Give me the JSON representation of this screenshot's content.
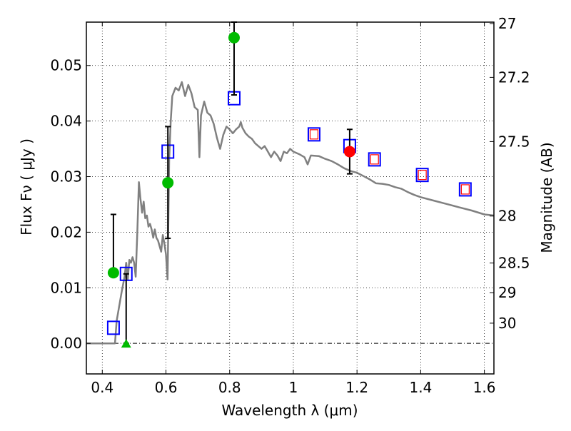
{
  "chart_data": {
    "type": "scatter",
    "title": "",
    "xlabel": "Wavelength  λ (μm)",
    "ylabel": "Flux  Fν  ( μJy )",
    "y2label": "Magnitude (AB)",
    "xlim": [
      0.35,
      1.63
    ],
    "ylim": [
      -0.0055,
      0.0578
    ],
    "grid": true,
    "legend": "none",
    "xticks": [
      0.4,
      0.6,
      0.8,
      1.0,
      1.2,
      1.4,
      1.6
    ],
    "xtick_labels": [
      "0.4",
      "0.6",
      "0.8",
      "1",
      "1.2",
      "1.4",
      "1.6"
    ],
    "yticks": [
      0.0,
      0.01,
      0.02,
      0.03,
      0.04,
      0.05
    ],
    "ytick_labels": [
      "0.00",
      "0.01",
      "0.02",
      "0.03",
      "0.04",
      "0.05"
    ],
    "y2ticks": [
      27,
      27.2,
      27.5,
      28,
      28.5,
      29,
      30
    ],
    "y2tick_labels": [
      "27",
      "27.2",
      "27.5",
      "28",
      "28.5",
      "29",
      "30"
    ],
    "y2_zero_point_ab": 23.9,
    "colors": {
      "model": "#808080",
      "observed": "#00bb00",
      "observed_red": "#ff0000",
      "model_phot": "#0000ff",
      "model_phot_inner": "#ff0000",
      "errorbar": "#000000"
    },
    "series": [
      {
        "name": "model-spectrum",
        "type": "line",
        "points": [
          [
            0.35,
            0.0
          ],
          [
            0.44,
            0.0
          ],
          [
            0.445,
            0.004
          ],
          [
            0.46,
            0.009
          ],
          [
            0.47,
            0.012
          ],
          [
            0.475,
            0.0145
          ],
          [
            0.48,
            0.0115
          ],
          [
            0.485,
            0.015
          ],
          [
            0.49,
            0.0145
          ],
          [
            0.495,
            0.0155
          ],
          [
            0.5,
            0.0145
          ],
          [
            0.505,
            0.012
          ],
          [
            0.51,
            0.02
          ],
          [
            0.515,
            0.029
          ],
          [
            0.52,
            0.026
          ],
          [
            0.525,
            0.0235
          ],
          [
            0.53,
            0.0255
          ],
          [
            0.535,
            0.0225
          ],
          [
            0.54,
            0.023
          ],
          [
            0.545,
            0.021
          ],
          [
            0.55,
            0.0215
          ],
          [
            0.555,
            0.0205
          ],
          [
            0.56,
            0.019
          ],
          [
            0.565,
            0.0205
          ],
          [
            0.57,
            0.019
          ],
          [
            0.575,
            0.0185
          ],
          [
            0.58,
            0.0175
          ],
          [
            0.585,
            0.0165
          ],
          [
            0.59,
            0.0195
          ],
          [
            0.595,
            0.018
          ],
          [
            0.6,
            0.016
          ],
          [
            0.605,
            0.0115
          ],
          [
            0.61,
            0.033
          ],
          [
            0.615,
            0.04
          ],
          [
            0.62,
            0.0445
          ],
          [
            0.63,
            0.046
          ],
          [
            0.64,
            0.0455
          ],
          [
            0.65,
            0.047
          ],
          [
            0.66,
            0.0445
          ],
          [
            0.67,
            0.0465
          ],
          [
            0.68,
            0.045
          ],
          [
            0.69,
            0.0425
          ],
          [
            0.7,
            0.042
          ],
          [
            0.705,
            0.0335
          ],
          [
            0.71,
            0.041
          ],
          [
            0.72,
            0.0435
          ],
          [
            0.73,
            0.0415
          ],
          [
            0.74,
            0.041
          ],
          [
            0.75,
            0.0395
          ],
          [
            0.76,
            0.037
          ],
          [
            0.77,
            0.035
          ],
          [
            0.78,
            0.0375
          ],
          [
            0.79,
            0.039
          ],
          [
            0.8,
            0.0385
          ],
          [
            0.81,
            0.0378
          ],
          [
            0.82,
            0.0385
          ],
          [
            0.83,
            0.039
          ],
          [
            0.835,
            0.0398
          ],
          [
            0.84,
            0.0388
          ],
          [
            0.85,
            0.0378
          ],
          [
            0.86,
            0.0372
          ],
          [
            0.87,
            0.0368
          ],
          [
            0.88,
            0.036
          ],
          [
            0.89,
            0.0355
          ],
          [
            0.9,
            0.035
          ],
          [
            0.91,
            0.0355
          ],
          [
            0.92,
            0.0345
          ],
          [
            0.93,
            0.0335
          ],
          [
            0.94,
            0.0345
          ],
          [
            0.95,
            0.0338
          ],
          [
            0.96,
            0.0328
          ],
          [
            0.97,
            0.0345
          ],
          [
            0.98,
            0.0342
          ],
          [
            0.99,
            0.035
          ],
          [
            1.0,
            0.0345
          ],
          [
            1.02,
            0.034
          ],
          [
            1.035,
            0.0335
          ],
          [
            1.045,
            0.0322
          ],
          [
            1.055,
            0.0338
          ],
          [
            1.08,
            0.0337
          ],
          [
            1.1,
            0.0332
          ],
          [
            1.12,
            0.0328
          ],
          [
            1.14,
            0.0322
          ],
          [
            1.16,
            0.0315
          ],
          [
            1.18,
            0.031
          ],
          [
            1.2,
            0.0307
          ],
          [
            1.22,
            0.0301
          ],
          [
            1.24,
            0.0295
          ],
          [
            1.26,
            0.0288
          ],
          [
            1.28,
            0.0287
          ],
          [
            1.3,
            0.0285
          ],
          [
            1.32,
            0.0281
          ],
          [
            1.34,
            0.0278
          ],
          [
            1.36,
            0.0272
          ],
          [
            1.38,
            0.0267
          ],
          [
            1.4,
            0.0263
          ],
          [
            1.44,
            0.0257
          ],
          [
            1.48,
            0.0251
          ],
          [
            1.52,
            0.0245
          ],
          [
            1.56,
            0.0239
          ],
          [
            1.6,
            0.0232
          ],
          [
            1.63,
            0.023
          ]
        ]
      },
      {
        "name": "observed-flux",
        "type": "errorbar-circle",
        "color": "#00bb00",
        "points": [
          {
            "x": 0.435,
            "y": 0.0127,
            "yerr_low": 0.0127,
            "yerr_high": 0.0232
          },
          {
            "x": 0.606,
            "y": 0.0289,
            "yerr_low": 0.0189,
            "yerr_high": 0.039
          },
          {
            "x": 0.814,
            "y": 0.055,
            "yerr_low": 0.0447,
            "yerr_high": 0.0578
          }
        ]
      },
      {
        "name": "observed-upper-limit",
        "type": "errorbar-triangle",
        "color": "#00bb00",
        "points": [
          {
            "x": 0.475,
            "y": 0.0,
            "yerr_low": 0.0,
            "yerr_high": 0.0125
          }
        ]
      },
      {
        "name": "observed-flux-red",
        "type": "errorbar-circle",
        "color": "#ff0000",
        "points": [
          {
            "x": 1.177,
            "y": 0.0345,
            "yerr_low": 0.0305,
            "yerr_high": 0.0385
          }
        ]
      },
      {
        "name": "model-photometry",
        "type": "square",
        "color": "#0000ff",
        "points": [
          {
            "x": 0.435,
            "y": 0.0028,
            "inner": false
          },
          {
            "x": 0.475,
            "y": 0.0125,
            "inner": false
          },
          {
            "x": 0.606,
            "y": 0.0345,
            "inner": false
          },
          {
            "x": 0.814,
            "y": 0.0441,
            "inner": false
          },
          {
            "x": 1.065,
            "y": 0.0376,
            "inner": true
          },
          {
            "x": 1.177,
            "y": 0.0355,
            "inner": false
          },
          {
            "x": 1.255,
            "y": 0.0331,
            "inner": true
          },
          {
            "x": 1.405,
            "y": 0.0303,
            "inner": true
          },
          {
            "x": 1.54,
            "y": 0.0277,
            "inner": true
          }
        ]
      }
    ]
  }
}
